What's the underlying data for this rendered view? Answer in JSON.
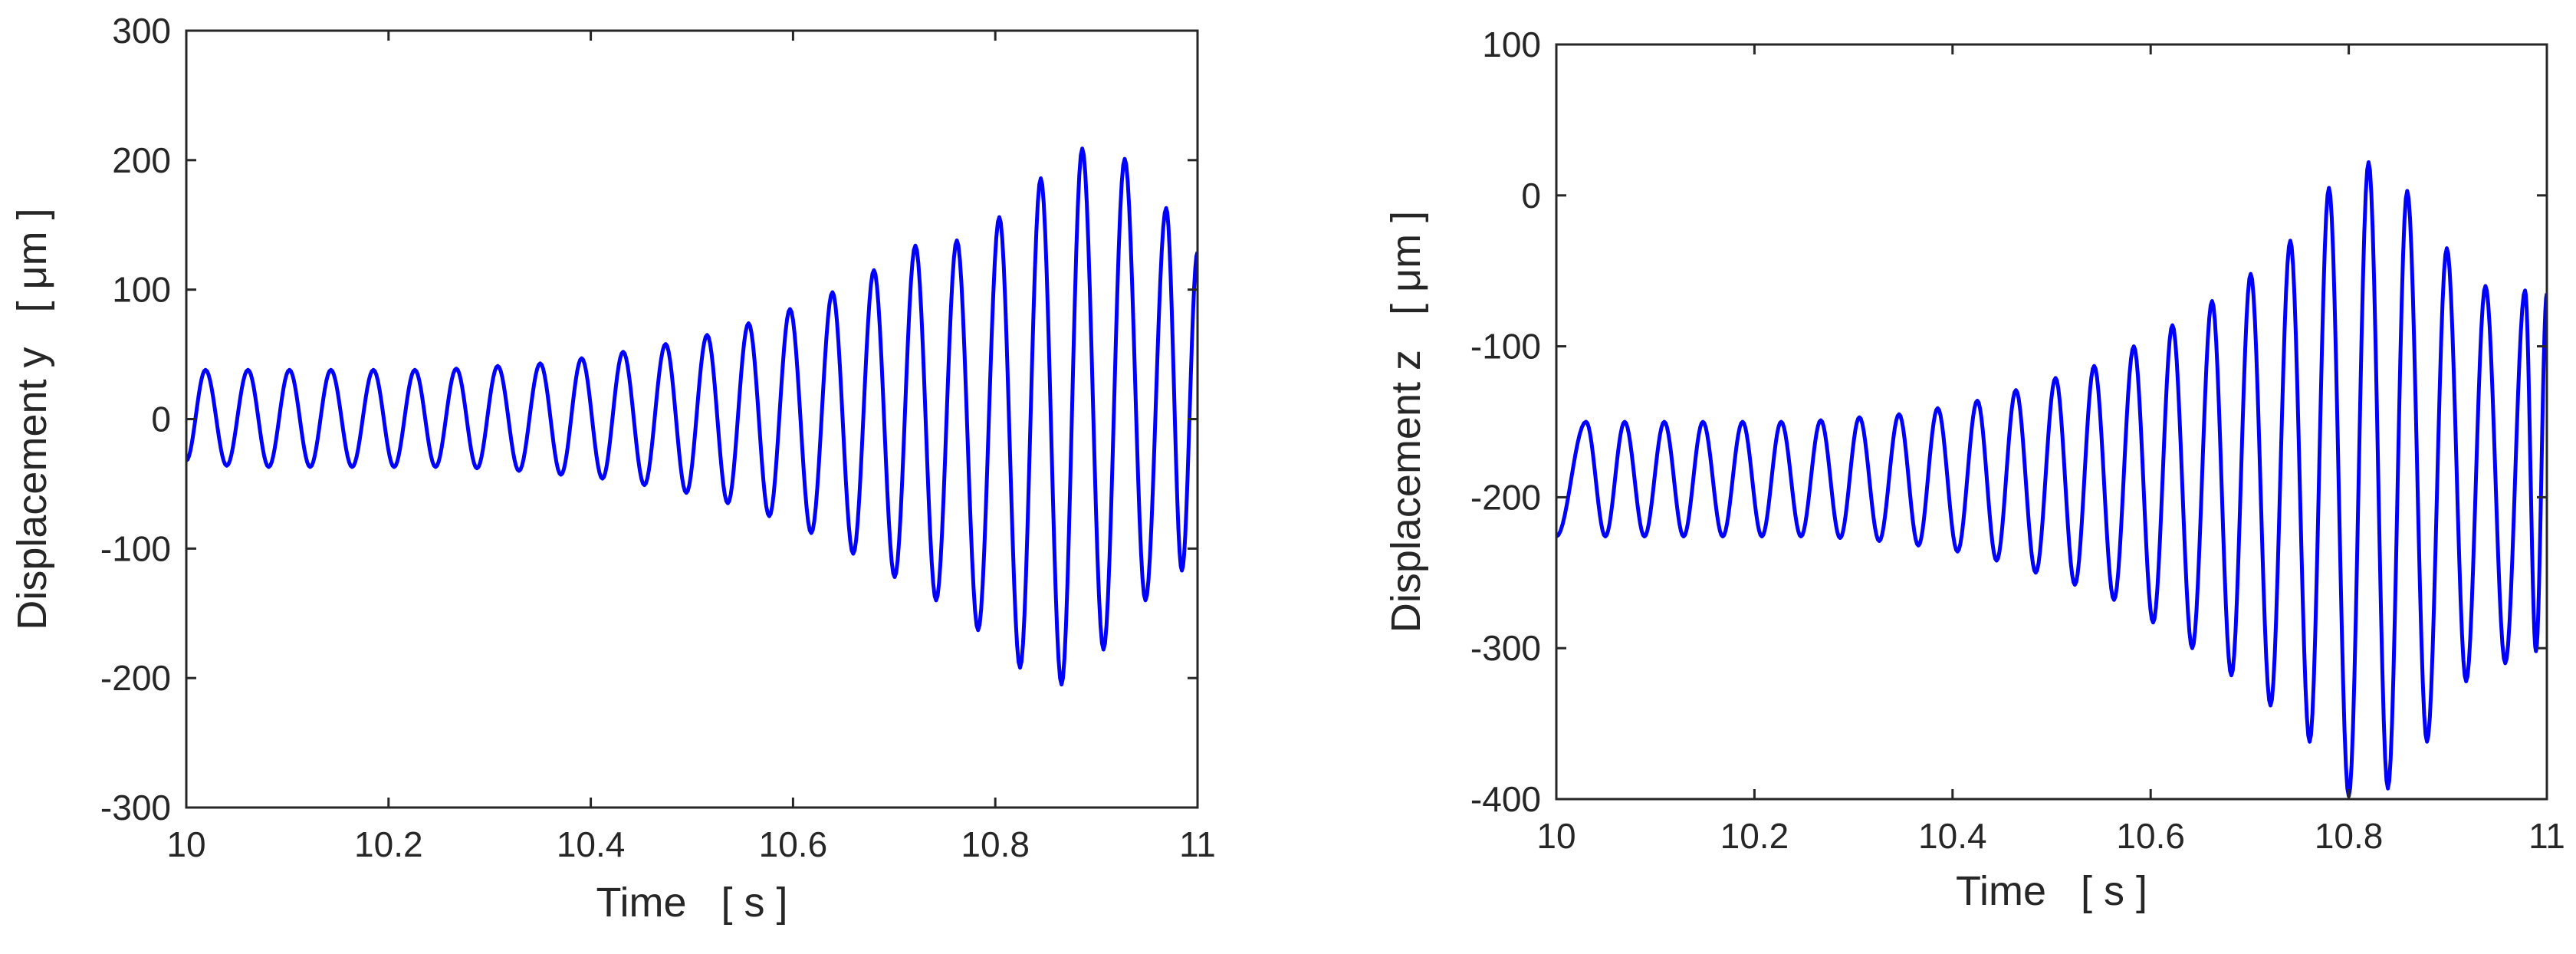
{
  "chart_data": [
    {
      "type": "line",
      "xlabel": "Time   [ s ]",
      "ylabel": "Displacement y   [ μm ]",
      "xlim": [
        10,
        11
      ],
      "ylim": [
        -300,
        300
      ],
      "xticks": [
        10,
        10.2,
        10.4,
        10.6,
        10.8,
        11
      ],
      "xtick_labels": [
        "10",
        "10.2",
        "10.4",
        "10.6",
        "10.8",
        "11"
      ],
      "yticks": [
        -300,
        -200,
        -100,
        0,
        100,
        200,
        300
      ],
      "ytick_labels": [
        "-300",
        "-200",
        "-100",
        "0",
        "100",
        "200",
        "300"
      ],
      "grid": false,
      "series": [
        {
          "color": "#0000ff",
          "offset": 0,
          "peaks": [
            [
              10.0,
              0,
              -32
            ],
            [
              10.019,
              38,
              -36
            ],
            [
              10.061,
              38,
              -37
            ],
            [
              10.102,
              38,
              -37
            ],
            [
              10.143,
              38,
              -37
            ],
            [
              10.185,
              38,
              -37
            ],
            [
              10.226,
              38,
              -37
            ],
            [
              10.267,
              39,
              -38
            ],
            [
              10.308,
              41,
              -40
            ],
            [
              10.35,
              43,
              -43
            ],
            [
              10.391,
              47,
              -46
            ],
            [
              10.432,
              52,
              -51
            ],
            [
              10.474,
              58,
              -57
            ],
            [
              10.515,
              65,
              -65
            ],
            [
              10.556,
              74,
              -75
            ],
            [
              10.597,
              85,
              -88
            ],
            [
              10.639,
              98,
              -104
            ],
            [
              10.68,
              115,
              -122
            ],
            [
              10.721,
              134,
              -140
            ],
            [
              10.762,
              138,
              -163
            ],
            [
              10.804,
              156,
              -192
            ],
            [
              10.845,
              186,
              -205
            ],
            [
              10.886,
              209,
              -178
            ],
            [
              10.928,
              201,
              -140
            ],
            [
              10.969,
              163,
              -117
            ],
            [
              11.0,
              129,
              -108
            ]
          ]
        }
      ]
    },
    {
      "type": "line",
      "xlabel": "Time   [ s ]",
      "ylabel": "Displacement z   [ μm ]",
      "xlim": [
        10,
        11
      ],
      "ylim": [
        -400,
        100
      ],
      "xticks": [
        10,
        10.2,
        10.4,
        10.6,
        10.8,
        11
      ],
      "xtick_labels": [
        "10",
        "10.2",
        "10.4",
        "10.6",
        "10.8",
        "11"
      ],
      "yticks": [
        -400,
        -300,
        -200,
        -100,
        0,
        100
      ],
      "ytick_labels": [
        "-400",
        "-300",
        "-200",
        "-100",
        "0",
        "100"
      ],
      "grid": false,
      "series": [
        {
          "color": "#0000ff",
          "offset": 0,
          "peaks": [
            [
              10.0,
              -205,
              -226
            ],
            [
              10.03,
              -150,
              -226
            ],
            [
              10.069,
              -150,
              -226
            ],
            [
              10.109,
              -150,
              -226
            ],
            [
              10.148,
              -150,
              -226
            ],
            [
              10.188,
              -150,
              -226
            ],
            [
              10.227,
              -150,
              -226
            ],
            [
              10.267,
              -149,
              -227
            ],
            [
              10.306,
              -147,
              -229
            ],
            [
              10.346,
              -145,
              -232
            ],
            [
              10.385,
              -141,
              -236
            ],
            [
              10.425,
              -136,
              -242
            ],
            [
              10.464,
              -129,
              -250
            ],
            [
              10.504,
              -121,
              -258
            ],
            [
              10.543,
              -113,
              -268
            ],
            [
              10.583,
              -100,
              -283
            ],
            [
              10.622,
              -86,
              -300
            ],
            [
              10.662,
              -70,
              -318
            ],
            [
              10.701,
              -52,
              -338
            ],
            [
              10.741,
              -30,
              -362
            ],
            [
              10.78,
              5,
              -398
            ],
            [
              10.82,
              22,
              -393
            ],
            [
              10.859,
              3,
              -362
            ],
            [
              10.899,
              -35,
              -322
            ],
            [
              10.938,
              -60,
              -310
            ],
            [
              10.978,
              -63,
              -302
            ],
            [
              11.0,
              -65,
              -295
            ]
          ]
        }
      ]
    }
  ]
}
